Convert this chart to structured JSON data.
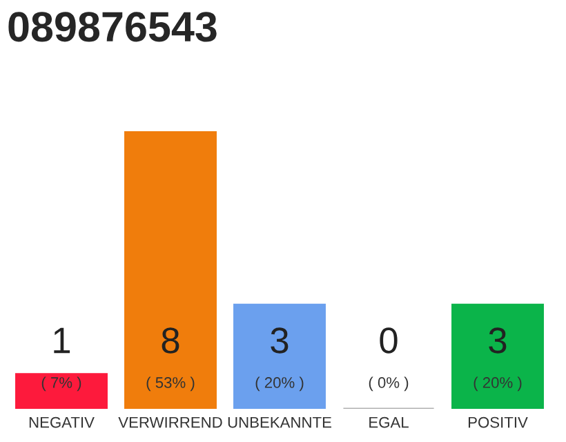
{
  "chart_data": {
    "type": "bar",
    "title": "089876543",
    "categories": [
      "NEGATIV",
      "VERWIRREND",
      "UNBEKANNTE",
      "EGAL",
      "POSITIV"
    ],
    "values": [
      1,
      8,
      3,
      0,
      3
    ],
    "colors": [
      "#fd1a3c",
      "#f07d0c",
      "#6ba0ee",
      "#b0b0b0",
      "#0bb44a"
    ],
    "ylim": [
      0,
      8
    ],
    "tick_labels": "x",
    "data_labels": true,
    "grid": false,
    "legend": false,
    "annotations": [
      "( 7% )",
      "( 53% )",
      "( 20% )",
      "( 0% )",
      "( 20% )"
    ]
  }
}
